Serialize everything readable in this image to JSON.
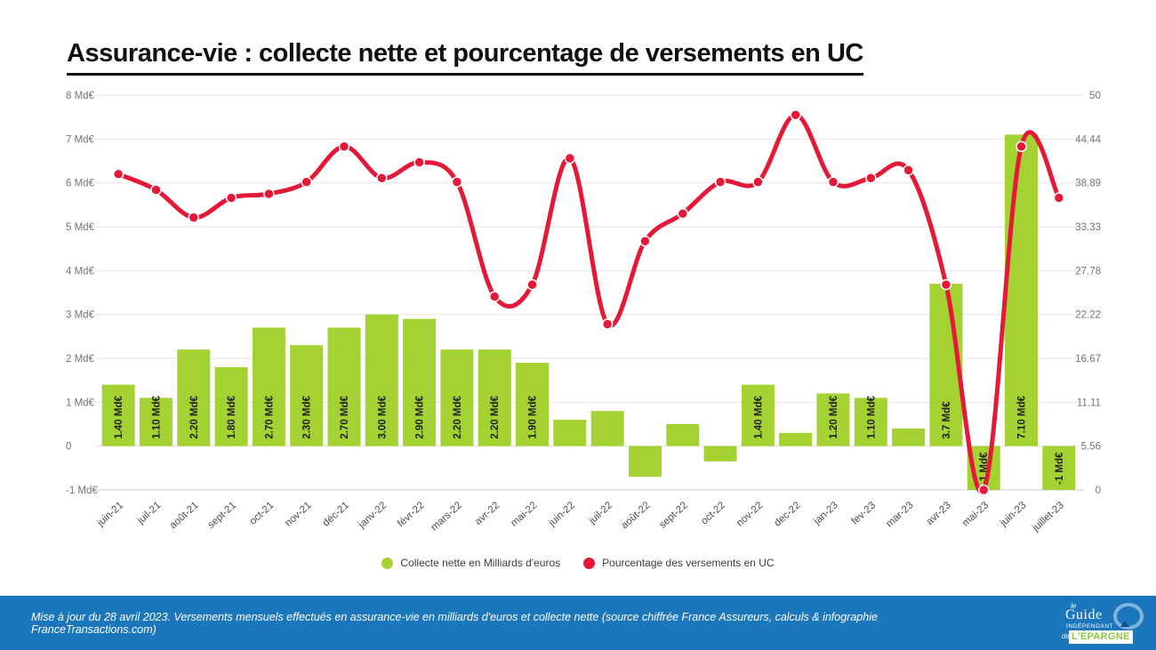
{
  "title": "Assurance-vie : collecte nette et pourcentage de versements en UC",
  "chart_data": {
    "type": "combo-bar-line",
    "categories": [
      "juin-21",
      "juil-21",
      "août-21",
      "sept-21",
      "oct-21",
      "nov-21",
      "déc-21",
      "janv-22",
      "févr-22",
      "mars-22",
      "avr-22",
      "mai-22",
      "juin-22",
      "juil-22",
      "août-22",
      "sept-22",
      "oct-22",
      "nov-22",
      "dec-22",
      "jan-23",
      "fev-23",
      "mar-23",
      "avr-23",
      "mai-23",
      "juin-23",
      "juillet-23"
    ],
    "series": [
      {
        "name": "Collecte nette en Milliards d'euros",
        "type": "bar",
        "axis": "left",
        "color": "#a4d233",
        "values": [
          1.4,
          1.1,
          2.2,
          1.8,
          2.7,
          2.3,
          2.7,
          3.0,
          2.9,
          2.2,
          2.2,
          1.9,
          0.6,
          0.8,
          -0.7,
          0.5,
          -0.35,
          1.4,
          0.3,
          1.2,
          1.1,
          0.4,
          3.7,
          -1,
          7.1,
          -1
        ],
        "data_labels": [
          "1.40 Md€",
          "1.10 Md€",
          "2.20 Md€",
          "1.80 Md€",
          "2.70 Md€",
          "2.30 Md€",
          "2.70 Md€",
          "3.00 Md€",
          "2.90 Md€",
          "2.20 Md€",
          "2.20 Md€",
          "1.90 Md€",
          "",
          "",
          "",
          "",
          "",
          "1.40 Md€",
          "",
          "1.20 Md€",
          "1.10 Md€",
          "",
          "3.7 Md€",
          "-1 Md€",
          "7.10 Md€",
          "-1 Md€"
        ]
      },
      {
        "name": "Pourcentage des versements en UC",
        "type": "line",
        "axis": "right",
        "color": "#e51937",
        "values": [
          40,
          38,
          34.5,
          37,
          37.5,
          39,
          43.5,
          39.5,
          41.5,
          39,
          24.5,
          26,
          42,
          21,
          31.5,
          35,
          39,
          39,
          47.5,
          39,
          39.5,
          40.5,
          26,
          0,
          43.5,
          37
        ]
      }
    ],
    "left_axis": {
      "labels": [
        "8 Md€",
        "7 Md€",
        "6 Md€",
        "5 Md€",
        "4 Md€",
        "3 Md€",
        "2 Md€",
        "1 Md€",
        "0",
        "-1 Md€"
      ],
      "min": -1,
      "max": 8,
      "unit": "Md€"
    },
    "right_axis": {
      "labels": [
        "50",
        "44.44",
        "38.89",
        "33.33",
        "27.78",
        "22.22",
        "16.67",
        "11.11",
        "5.56",
        "0"
      ],
      "min": 0,
      "max": 50
    },
    "grid": true,
    "legend_position": "bottom",
    "grid_color": "#e4e4e4",
    "axis_text_color": "#757575",
    "tick_text_color": "#4d4d4d",
    "bar_label_color": "#1f1f1f"
  },
  "legend": {
    "bar_label": "Collecte nette en Milliards d'euros",
    "line_label": "Pourcentage des versements en UC"
  },
  "footer": {
    "text": "Mise à jour du 28 avril 2023. Versements mensuels effectués en assurance-vie en milliards d'euros et collecte nette (source chiffrée France Assureurs, calculs & infographie FranceTransactions.com)",
    "bg_color": "#1b76bc",
    "logo": {
      "le": "le",
      "guide": "Guide",
      "independant": "INDÉPENDANT",
      "de": "de",
      "epargne": "L'ÉPARGNE",
      "epargne_color": "#8dc63f"
    }
  }
}
